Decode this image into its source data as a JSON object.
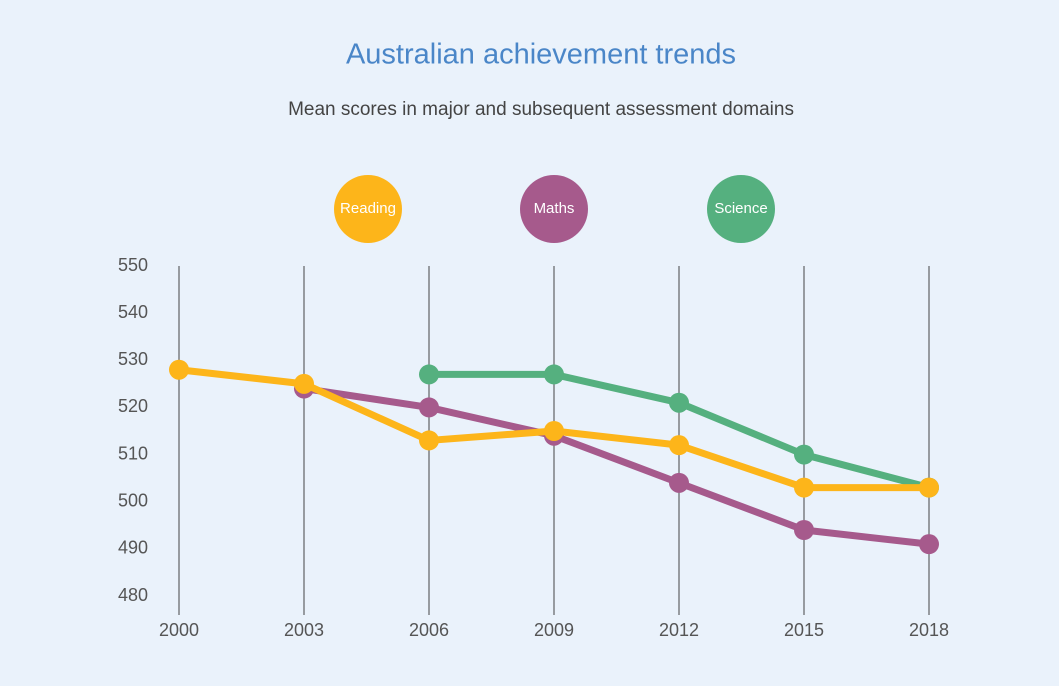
{
  "chart_data": {
    "type": "line",
    "title": "Australian achievement trends",
    "subtitle": "Mean scores in major and subsequent assessment domains",
    "x": [
      2000,
      2003,
      2006,
      2009,
      2012,
      2015,
      2018
    ],
    "xlim": [
      2000,
      2018
    ],
    "xticks": [
      2000,
      2003,
      2006,
      2009,
      2012,
      2015,
      2018
    ],
    "ylim": [
      480,
      550
    ],
    "yticks": [
      480,
      490,
      500,
      510,
      520,
      530,
      540,
      550
    ],
    "grid": true,
    "legend": "top",
    "series": [
      {
        "name": "Science",
        "color": "#55b07f",
        "values": [
          null,
          null,
          527,
          527,
          521,
          510,
          503
        ]
      },
      {
        "name": "Maths",
        "color": "#a65a8c",
        "values": [
          null,
          524,
          520,
          514,
          504,
          494,
          491
        ]
      },
      {
        "name": "Reading",
        "color": "#fdb51a",
        "values": [
          528,
          525,
          513,
          515,
          512,
          503,
          503
        ]
      }
    ]
  }
}
